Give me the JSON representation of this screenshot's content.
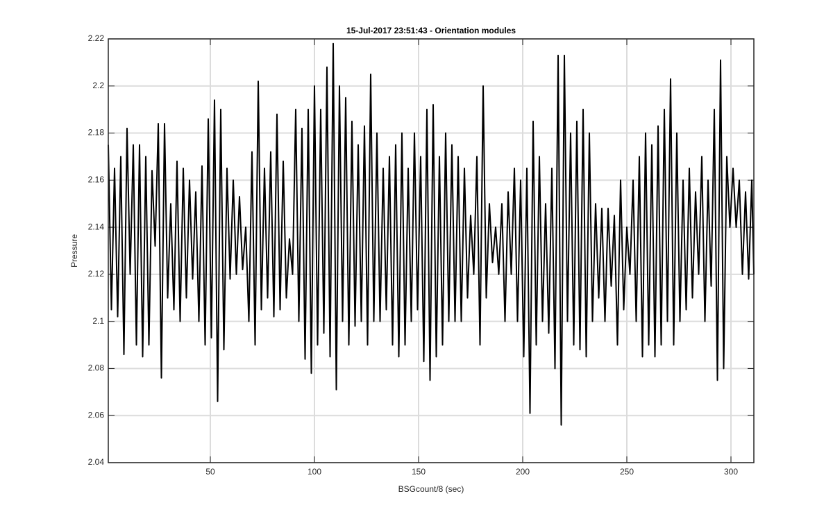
{
  "chart_data": {
    "type": "line",
    "title": "15-Jul-2017 23:51:43 - Orientation modules",
    "x_label": "BSGcount/8 (sec)",
    "y_label": "Pressure",
    "grid": true,
    "xlim": [
      1,
      311
    ],
    "ylim": [
      2.04,
      2.22
    ],
    "xticks": [
      50,
      100,
      150,
      200,
      250,
      300
    ],
    "yticks": [
      2.04,
      2.06,
      2.08,
      2.1,
      2.12,
      2.14,
      2.16,
      2.18,
      2.2,
      2.22
    ],
    "x": [
      1,
      2.5,
      4,
      5.5,
      7,
      8.5,
      10,
      11.5,
      13,
      14.5,
      16,
      17.5,
      19,
      20.5,
      22,
      23.5,
      25,
      26.5,
      28,
      29.5,
      31,
      32.5,
      34,
      35.5,
      37,
      38.5,
      40,
      41.5,
      43,
      44.5,
      46,
      47.5,
      49,
      50.5,
      52,
      53.5,
      55,
      56.5,
      58,
      59.5,
      61,
      62.5,
      64,
      65.5,
      67,
      68.5,
      70,
      71.5,
      73,
      74.5,
      76,
      77.5,
      79,
      80.5,
      82,
      83.5,
      85,
      86.5,
      88,
      89.5,
      91,
      92.5,
      94,
      95.5,
      97,
      98.5,
      100,
      101.5,
      103,
      104.5,
      106,
      107.5,
      109,
      110.5,
      112,
      113.5,
      115,
      116.5,
      118,
      119.5,
      121,
      122.5,
      124,
      125.5,
      127,
      128.5,
      130,
      131.5,
      133,
      134.5,
      136,
      137.5,
      139,
      140.5,
      142,
      143.5,
      145,
      146.5,
      148,
      149.5,
      151,
      152.5,
      154,
      155.5,
      157,
      158.5,
      160,
      161.5,
      163,
      164.5,
      166,
      167.5,
      169,
      170.5,
      172,
      173.5,
      175,
      176.5,
      178,
      179.5,
      181,
      182.5,
      184,
      185.5,
      187,
      188.5,
      190,
      191.5,
      193,
      194.5,
      196,
      197.5,
      199,
      200.5,
      202,
      203.5,
      205,
      206.5,
      208,
      209.5,
      211,
      212.5,
      214,
      215.5,
      217,
      218.5,
      220,
      221.5,
      223,
      224.5,
      226,
      227.5,
      229,
      230.5,
      232,
      233.5,
      235,
      236.5,
      238,
      239.5,
      241,
      242.5,
      244,
      245.5,
      247,
      248.5,
      250,
      251.5,
      253,
      254.5,
      256,
      257.5,
      259,
      260.5,
      262,
      263.5,
      265,
      266.5,
      268,
      269.5,
      271,
      272.5,
      274,
      275.5,
      277,
      278.5,
      280,
      281.5,
      283,
      284.5,
      286,
      287.5,
      289,
      290.5,
      292,
      293.5,
      295,
      296.5,
      298,
      299.5,
      301,
      302.5,
      304,
      305.5,
      307,
      308.5,
      310,
      311
    ],
    "series": [
      {
        "color": "#000000",
        "values": [
          2.175,
          2.105,
          2.165,
          2.102,
          2.17,
          2.086,
          2.182,
          2.12,
          2.175,
          2.09,
          2.175,
          2.085,
          2.17,
          2.09,
          2.164,
          2.132,
          2.184,
          2.076,
          2.184,
          2.11,
          2.15,
          2.105,
          2.168,
          2.1,
          2.165,
          2.11,
          2.16,
          2.118,
          2.155,
          2.1,
          2.166,
          2.09,
          2.186,
          2.093,
          2.194,
          2.066,
          2.19,
          2.088,
          2.165,
          2.118,
          2.16,
          2.12,
          2.153,
          2.122,
          2.14,
          2.1,
          2.172,
          2.09,
          2.202,
          2.105,
          2.165,
          2.11,
          2.172,
          2.102,
          2.188,
          2.105,
          2.168,
          2.11,
          2.135,
          2.12,
          2.19,
          2.1,
          2.182,
          2.084,
          2.19,
          2.078,
          2.2,
          2.09,
          2.19,
          2.095,
          2.208,
          2.085,
          2.218,
          2.071,
          2.2,
          2.1,
          2.195,
          2.09,
          2.185,
          2.098,
          2.175,
          2.1,
          2.183,
          2.09,
          2.205,
          2.1,
          2.18,
          2.1,
          2.165,
          2.105,
          2.17,
          2.09,
          2.175,
          2.085,
          2.18,
          2.09,
          2.165,
          2.1,
          2.18,
          2.105,
          2.17,
          2.083,
          2.19,
          2.075,
          2.192,
          2.085,
          2.17,
          2.09,
          2.18,
          2.1,
          2.175,
          2.1,
          2.17,
          2.1,
          2.165,
          2.11,
          2.145,
          2.12,
          2.17,
          2.09,
          2.2,
          2.11,
          2.15,
          2.125,
          2.14,
          2.12,
          2.15,
          2.1,
          2.155,
          2.12,
          2.165,
          2.1,
          2.16,
          2.085,
          2.165,
          2.061,
          2.185,
          2.09,
          2.17,
          2.1,
          2.15,
          2.095,
          2.165,
          2.08,
          2.213,
          2.056,
          2.213,
          2.1,
          2.18,
          2.09,
          2.185,
          2.088,
          2.19,
          2.085,
          2.18,
          2.1,
          2.15,
          2.11,
          2.148,
          2.1,
          2.148,
          2.115,
          2.145,
          2.09,
          2.16,
          2.105,
          2.14,
          2.12,
          2.16,
          2.1,
          2.17,
          2.085,
          2.18,
          2.09,
          2.175,
          2.085,
          2.183,
          2.09,
          2.19,
          2.1,
          2.203,
          2.09,
          2.18,
          2.1,
          2.16,
          2.105,
          2.165,
          2.11,
          2.155,
          2.12,
          2.17,
          2.1,
          2.16,
          2.115,
          2.19,
          2.075,
          2.211,
          2.08,
          2.17,
          2.14,
          2.165,
          2.14,
          2.16,
          2.12,
          2.155,
          2.118,
          2.16,
          2.12
        ]
      }
    ]
  }
}
